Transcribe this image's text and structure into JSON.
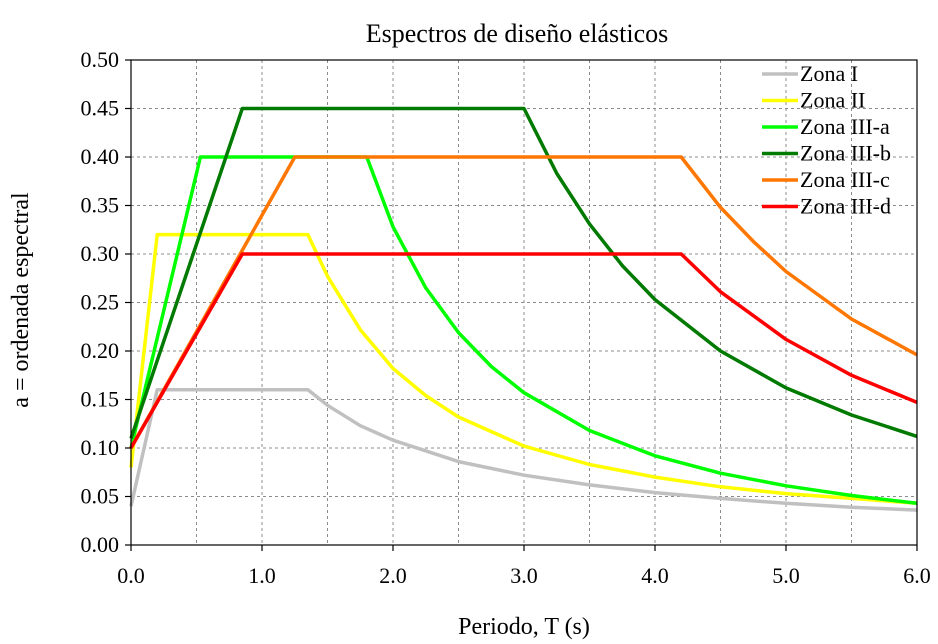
{
  "chart_data": {
    "type": "line",
    "title": "Espectros de diseño elásticos",
    "xlabel": "Periodo, T (s)",
    "ylabel": "a = ordenada espectral",
    "xlim": [
      0,
      6
    ],
    "ylim": [
      0,
      0.5
    ],
    "x_ticks": [
      0,
      1,
      2,
      3,
      4,
      5,
      6
    ],
    "x_tick_labels": [
      "0.0",
      "1.0",
      "2.0",
      "3.0",
      "4.0",
      "5.0",
      "6.0"
    ],
    "y_ticks": [
      0,
      0.05,
      0.1,
      0.15,
      0.2,
      0.25,
      0.3,
      0.35,
      0.4,
      0.45,
      0.5
    ],
    "y_tick_labels": [
      "0.00",
      "0.05",
      "0.10",
      "0.15",
      "0.20",
      "0.25",
      "0.30",
      "0.35",
      "0.40",
      "0.45",
      "0.50"
    ],
    "grid": true,
    "legend_position": "top-right",
    "series": [
      {
        "name": "Zona I",
        "color": "#c0c0c0",
        "points": [
          [
            0,
            0.04
          ],
          [
            0.2,
            0.16
          ],
          [
            1.35,
            0.16
          ],
          [
            1.5,
            0.144
          ],
          [
            1.75,
            0.123
          ],
          [
            2.0,
            0.108
          ],
          [
            2.5,
            0.086
          ],
          [
            3.0,
            0.072
          ],
          [
            3.5,
            0.062
          ],
          [
            4.0,
            0.054
          ],
          [
            4.5,
            0.048
          ],
          [
            5.0,
            0.043
          ],
          [
            5.5,
            0.039
          ],
          [
            6.0,
            0.036
          ]
        ]
      },
      {
        "name": "Zona II",
        "color": "#ffff00",
        "points": [
          [
            0,
            0.08
          ],
          [
            0.2,
            0.32
          ],
          [
            1.35,
            0.32
          ],
          [
            1.5,
            0.277
          ],
          [
            1.75,
            0.222
          ],
          [
            2.0,
            0.182
          ],
          [
            2.25,
            0.154
          ],
          [
            2.5,
            0.132
          ],
          [
            3.0,
            0.102
          ],
          [
            3.5,
            0.083
          ],
          [
            4.0,
            0.07
          ],
          [
            4.5,
            0.06
          ],
          [
            5.0,
            0.053
          ],
          [
            5.5,
            0.048
          ],
          [
            6.0,
            0.043
          ]
        ]
      },
      {
        "name": "Zona III-a",
        "color": "#00ff00",
        "points": [
          [
            0,
            0.1
          ],
          [
            0.53,
            0.4
          ],
          [
            1.8,
            0.4
          ],
          [
            2.0,
            0.328
          ],
          [
            2.25,
            0.265
          ],
          [
            2.5,
            0.219
          ],
          [
            2.75,
            0.184
          ],
          [
            3.0,
            0.157
          ],
          [
            3.5,
            0.118
          ],
          [
            4.0,
            0.092
          ],
          [
            4.5,
            0.074
          ],
          [
            5.0,
            0.061
          ],
          [
            5.5,
            0.051
          ],
          [
            6.0,
            0.043
          ]
        ]
      },
      {
        "name": "Zona III-b",
        "color": "#007a00",
        "points": [
          [
            0,
            0.11
          ],
          [
            0.85,
            0.45
          ],
          [
            3.0,
            0.45
          ],
          [
            3.25,
            0.383
          ],
          [
            3.5,
            0.331
          ],
          [
            3.75,
            0.288
          ],
          [
            4.0,
            0.253
          ],
          [
            4.5,
            0.2
          ],
          [
            5.0,
            0.162
          ],
          [
            5.5,
            0.134
          ],
          [
            6.0,
            0.112
          ]
        ]
      },
      {
        "name": "Zona III-c",
        "color": "#ff7700",
        "points": [
          [
            0,
            0.1
          ],
          [
            1.25,
            0.4
          ],
          [
            4.2,
            0.4
          ],
          [
            4.5,
            0.348
          ],
          [
            4.75,
            0.313
          ],
          [
            5.0,
            0.282
          ],
          [
            5.5,
            0.233
          ],
          [
            6.0,
            0.196
          ]
        ]
      },
      {
        "name": "Zona III-d",
        "color": "#ff0000",
        "points": [
          [
            0,
            0.1
          ],
          [
            0.85,
            0.3
          ],
          [
            4.2,
            0.3
          ],
          [
            4.5,
            0.261
          ],
          [
            5.0,
            0.212
          ],
          [
            5.5,
            0.175
          ],
          [
            6.0,
            0.147
          ]
        ]
      }
    ]
  }
}
